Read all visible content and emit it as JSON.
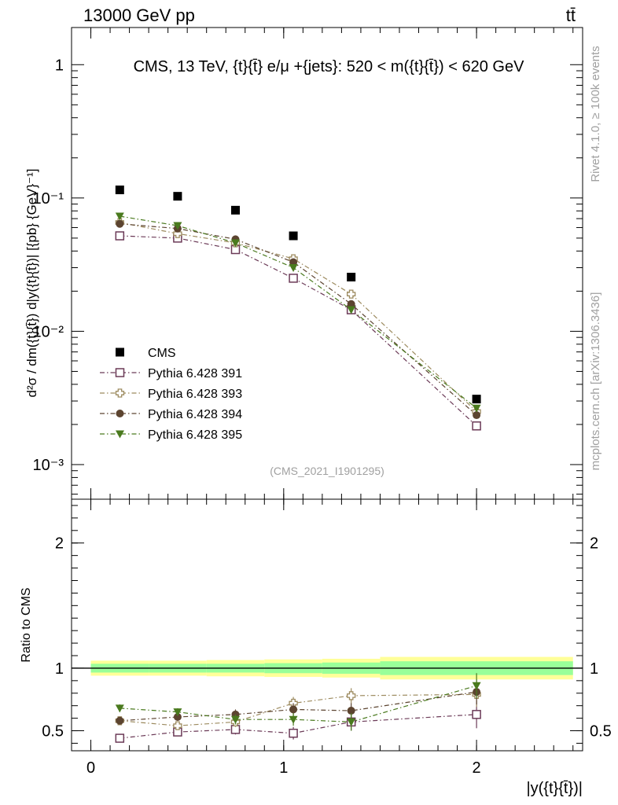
{
  "header": {
    "left_title": "13000 GeV pp",
    "right_title": "tt̄"
  },
  "side_labels": {
    "rivet": "Rivet 4.1.0, ≥ 100k events",
    "mcplots": "mcplots.cern.ch [arXiv:1306.3436]"
  },
  "colors": {
    "cms": "#000000",
    "p391": "#6b3a57",
    "p393": "#9c8a5e",
    "p394": "#5c4430",
    "p395": "#4a7a1e",
    "band_outer": "#ffff99",
    "band_inner": "#99ff99"
  },
  "chart_data": {
    "type": "scatter",
    "title": "CMS, 13 TeV, {t}{t̄} e/μ +{jets}: 520 < m({t}{t̄}) < 620 GeV",
    "watermark": "(CMS_2021_I1901295)",
    "xlabel": "|y({t}{t̄})|",
    "ylabel_main": "d²σ / dm({t}{t̄}) d|y({t}{t̄})| [{pb} {GeV}⁻¹]",
    "ylabel_ratio": "Ratio to CMS",
    "xlim": [
      -0.1,
      2.55
    ],
    "ylim_main": [
      0.00055,
      1.9
    ],
    "ylim_ratio": [
      0.34,
      2.35
    ],
    "y_scale_main": "log",
    "x_ticks": [
      0,
      1,
      2
    ],
    "x_tick_labels": [
      "0",
      "1",
      "2"
    ],
    "y_ticks_main": [
      0.001,
      0.01,
      0.1,
      1
    ],
    "y_tick_labels_main": [
      "10⁻³",
      "10⁻²",
      "10⁻¹",
      "1"
    ],
    "y_ticks_ratio": [
      0.5,
      1,
      2
    ],
    "y_tick_labels_ratio": [
      "0.5",
      "1",
      "2"
    ],
    "x": [
      0.15,
      0.45,
      0.75,
      1.05,
      1.35,
      2.0
    ],
    "bin_edges": [
      0,
      0.3,
      0.6,
      0.9,
      1.2,
      1.5,
      2.5
    ],
    "legend_position": "lower-left",
    "cms": {
      "name": "CMS",
      "values": [
        0.115,
        0.103,
        0.081,
        0.052,
        0.0255,
        0.0031
      ],
      "band_inner": [
        0.035,
        0.035,
        0.035,
        0.04,
        0.045,
        0.055
      ],
      "band_outer": [
        0.06,
        0.06,
        0.065,
        0.07,
        0.075,
        0.09
      ]
    },
    "series": [
      {
        "name": "Pythia 6.428 391",
        "marker": "open-square",
        "color_key": "p391",
        "values": [
          0.052,
          0.05,
          0.041,
          0.025,
          0.0145,
          0.00195
        ],
        "ratio": [
          0.44,
          0.49,
          0.51,
          0.48,
          0.57,
          0.63
        ],
        "ratio_err": [
          0.03,
          0.03,
          0.04,
          0.05,
          0.07,
          0.11
        ]
      },
      {
        "name": "Pythia 6.428 393",
        "marker": "open-cross",
        "color_key": "p393",
        "values": [
          0.0655,
          0.054,
          0.046,
          0.035,
          0.019,
          0.0025
        ],
        "ratio": [
          0.58,
          0.54,
          0.57,
          0.72,
          0.78,
          0.79
        ],
        "ratio_err": [
          0.03,
          0.03,
          0.04,
          0.05,
          0.06,
          0.1
        ]
      },
      {
        "name": "Pythia 6.428 394",
        "marker": "filled-circle",
        "color_key": "p394",
        "values": [
          0.064,
          0.059,
          0.049,
          0.033,
          0.016,
          0.00235
        ],
        "ratio": [
          0.58,
          0.61,
          0.63,
          0.67,
          0.66,
          0.81
        ],
        "ratio_err": [
          0.03,
          0.03,
          0.04,
          0.05,
          0.06,
          0.1
        ]
      },
      {
        "name": "Pythia 6.428 395",
        "marker": "filled-triangle-down",
        "color_key": "p395",
        "values": [
          0.073,
          0.062,
          0.046,
          0.03,
          0.0145,
          0.00265
        ],
        "ratio": [
          0.68,
          0.65,
          0.59,
          0.59,
          0.57,
          0.86
        ],
        "ratio_err": [
          0.03,
          0.03,
          0.04,
          0.05,
          0.07,
          0.1
        ]
      }
    ]
  }
}
